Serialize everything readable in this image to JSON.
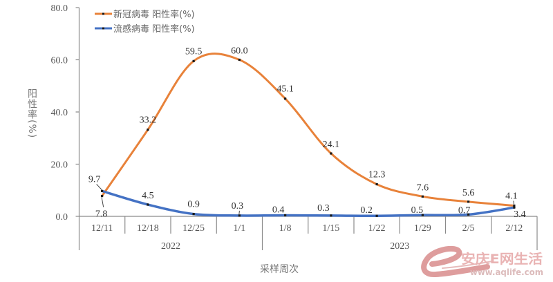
{
  "chart_data": {
    "type": "line",
    "title": "",
    "xlabel": "采样周次",
    "ylabel": "阳性率(%)",
    "ylim": [
      0,
      80
    ],
    "yticks": [
      0,
      20,
      40,
      60,
      80
    ],
    "ytick_labels": [
      "0.0",
      "20.0",
      "40.0",
      "60.0",
      "80.0"
    ],
    "grid": false,
    "smooth": true,
    "legend": "top-left",
    "categories": [
      "12/11",
      "12/18",
      "12/25",
      "1/1",
      "1/8",
      "1/15",
      "1/22",
      "1/29",
      "2/5",
      "2/12"
    ],
    "category_groups": [
      {
        "label": "2022",
        "span": 4
      },
      {
        "label": "2023",
        "span": 6
      }
    ],
    "series": [
      {
        "name": "新冠病毒 阳性率(%)",
        "color": "#E8823A",
        "values": [
          7.8,
          33.2,
          59.5,
          60.0,
          45.1,
          24.1,
          12.3,
          7.6,
          5.6,
          4.1
        ],
        "data_labels": [
          "7.8",
          "33.2",
          "59.5",
          "60.0",
          "45.1",
          "24.1",
          "12.3",
          "7.6",
          "5.6",
          "4.1"
        ]
      },
      {
        "name": "流感病毒 阳性率(%)",
        "color": "#4472C4",
        "values": [
          9.7,
          4.5,
          0.9,
          0.3,
          0.4,
          0.3,
          0.2,
          0.5,
          0.7,
          3.4
        ],
        "data_labels": [
          "9.7",
          "4.5",
          "0.9",
          "0.3",
          "0.4",
          "0.3",
          "0.2",
          "0.5",
          "0.7",
          "3.4"
        ]
      }
    ]
  },
  "watermark": {
    "brand": "安庆E网生活",
    "url": "www.aqlife.com",
    "color": "#D98C8C"
  }
}
